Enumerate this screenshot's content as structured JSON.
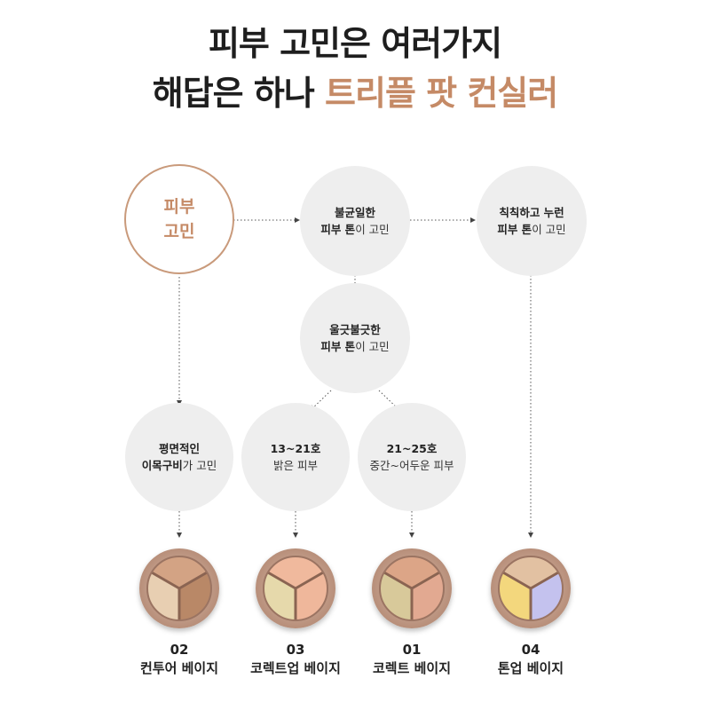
{
  "headline": {
    "line1": "피부 고민은 여러가지",
    "line2_prefix": "해답은 하나 ",
    "line2_accent": "트리플 팟 컨실러"
  },
  "nodes": {
    "start": {
      "l1": "피부",
      "l2": "고민"
    },
    "uneven": {
      "bold": "불균일한",
      "bold2": "피부 톤",
      "rest": "이 고민"
    },
    "dull": {
      "bold": "칙칙하고 누런",
      "bold2": "피부 톤",
      "rest": "이 고민"
    },
    "red": {
      "bold": "울긋불긋한",
      "bold2": "피부 톤",
      "rest": "이 고민"
    },
    "flat": {
      "bold": "평면적인",
      "bold2": "이목구비",
      "rest": "가 고민"
    },
    "light": {
      "bold": "13~21호",
      "line2": "밝은 피부"
    },
    "mid": {
      "bold": "21~25호",
      "line2": "중간~어두운 피부"
    }
  },
  "products": [
    {
      "num": "02",
      "name": "컨투어 베이지",
      "colors": [
        "#d3a384",
        "#b98867",
        "#e8cfb2"
      ]
    },
    {
      "num": "03",
      "name": "코렉트업 베이지",
      "colors": [
        "#f0b99d",
        "#efb79b",
        "#e6d9ab"
      ]
    },
    {
      "num": "01",
      "name": "코렉트 베이지",
      "colors": [
        "#dca587",
        "#e2a991",
        "#d8c99a"
      ]
    },
    {
      "num": "04",
      "name": "톤업 베이지",
      "colors": [
        "#e2c1a2",
        "#c4c2ee",
        "#f3d77d"
      ]
    }
  ],
  "colors": {
    "accent": "#c58a66",
    "node_bg": "#eeeeee",
    "line": "#555555"
  }
}
